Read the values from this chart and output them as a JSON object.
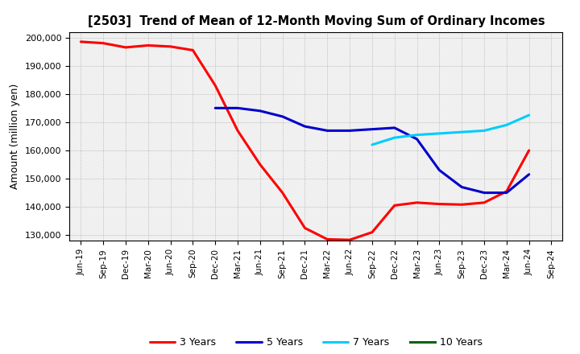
{
  "title": "[2503]  Trend of Mean of 12-Month Moving Sum of Ordinary Incomes",
  "ylabel": "Amount (million yen)",
  "background_color": "#ffffff",
  "plot_bg_color": "#f0f0f0",
  "grid_color": "#999999",
  "ylim": [
    128000,
    202000
  ],
  "yticks": [
    130000,
    140000,
    150000,
    160000,
    170000,
    180000,
    190000,
    200000
  ],
  "x_labels": [
    "Jun-19",
    "Sep-19",
    "Dec-19",
    "Mar-20",
    "Jun-20",
    "Sep-20",
    "Dec-20",
    "Mar-21",
    "Jun-21",
    "Sep-21",
    "Dec-21",
    "Mar-22",
    "Jun-22",
    "Sep-22",
    "Dec-22",
    "Mar-23",
    "Jun-23",
    "Sep-23",
    "Dec-23",
    "Mar-24",
    "Jun-24",
    "Sep-24"
  ],
  "series": {
    "3 Years": {
      "color": "#ff0000",
      "data_x": [
        0,
        1,
        2,
        3,
        4,
        5,
        6,
        7,
        8,
        9,
        10,
        11,
        12,
        13,
        14,
        15,
        16,
        17,
        18,
        19,
        20
      ],
      "data_y": [
        198500,
        198000,
        196500,
        197200,
        196800,
        195500,
        183000,
        167000,
        155000,
        145000,
        132500,
        128500,
        128300,
        131000,
        140500,
        141500,
        141000,
        140800,
        141500,
        145500,
        160000
      ]
    },
    "5 Years": {
      "color": "#0000cc",
      "data_x": [
        6,
        7,
        8,
        9,
        10,
        11,
        12,
        13,
        14,
        15,
        16,
        17,
        18,
        19,
        20
      ],
      "data_y": [
        175000,
        175000,
        174000,
        172000,
        168500,
        167000,
        167000,
        167500,
        168000,
        164000,
        153000,
        147000,
        145000,
        145000,
        151500
      ]
    },
    "7 Years": {
      "color": "#00ccff",
      "data_x": [
        13,
        14,
        15,
        16,
        17,
        18,
        19,
        20
      ],
      "data_y": [
        162000,
        164500,
        165500,
        166000,
        166500,
        167000,
        169000,
        172500
      ]
    },
    "10 Years": {
      "color": "#006600",
      "data_x": [],
      "data_y": []
    }
  },
  "legend_entries": [
    "3 Years",
    "5 Years",
    "7 Years",
    "10 Years"
  ]
}
